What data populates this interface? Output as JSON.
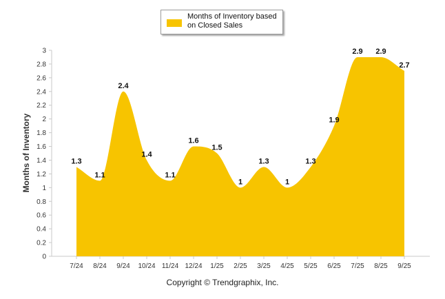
{
  "chart_data": {
    "type": "area",
    "title": "",
    "ylabel": "Months of Inventory",
    "xlabel": "",
    "ylim": [
      0,
      3
    ],
    "ytick_step": 0.2,
    "yticks": [
      "0",
      "0.2",
      "0.4",
      "0.6",
      "0.8",
      "1",
      "1.2",
      "1.4",
      "1.6",
      "1.8",
      "2",
      "2.2",
      "2.4",
      "2.6",
      "2.8",
      "3"
    ],
    "grid": false,
    "legend_position": "top-center",
    "categories": [
      "7/24",
      "8/24",
      "9/24",
      "10/24",
      "11/24",
      "12/24",
      "1/25",
      "2/25",
      "3/25",
      "4/25",
      "5/25",
      "6/25",
      "7/25",
      "8/25",
      "9/25"
    ],
    "series": [
      {
        "name": "Months of Inventory based on Closed Sales",
        "values": [
          1.3,
          1.1,
          2.4,
          1.4,
          1.1,
          1.6,
          1.5,
          1,
          1.3,
          1,
          1.3,
          1.9,
          2.9,
          2.9,
          2.7
        ],
        "labels": [
          "1.3",
          "1.1",
          "2.4",
          "1.4",
          "1.1",
          "1.6",
          "1.5",
          "1",
          "1.3",
          "1",
          "1.3",
          "1.9",
          "2.9",
          "2.9",
          "2.7"
        ],
        "color": "#f7c400"
      }
    ]
  },
  "legend": {
    "line1": "Months of Inventory based",
    "line2": "on Closed Sales"
  },
  "footer": {
    "copyright": "Copyright © Trendgraphix, Inc."
  },
  "colors": {
    "fill": "#f7c400",
    "axis": "#c8c8c8",
    "text": "#333333"
  }
}
